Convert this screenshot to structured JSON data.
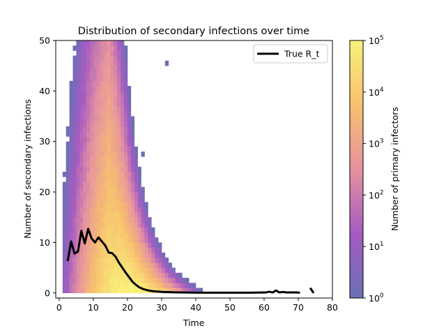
{
  "chart_data": {
    "type": "heatmap",
    "title": "Distribution of secondary infections over time",
    "xlabel": "Time",
    "ylabel": "Number of secondary infections",
    "xlim": [
      -1,
      80
    ],
    "ylim": [
      -1,
      50
    ],
    "xticks": [
      0,
      10,
      20,
      30,
      40,
      50,
      60,
      70,
      80
    ],
    "yticks": [
      0,
      10,
      20,
      30,
      40,
      50
    ],
    "grid": false,
    "legend": {
      "position": "top-right",
      "entries": [
        "True R_t"
      ]
    },
    "colorbar": {
      "label": "Number of primary infectors",
      "scale": "log",
      "range": [
        1,
        100000
      ],
      "tick_values": [
        1,
        10,
        100,
        1000,
        10000,
        100000
      ],
      "tick_labels": [
        {
          "base": "10",
          "exp": "0"
        },
        {
          "base": "10",
          "exp": "1"
        },
        {
          "base": "10",
          "exp": "2"
        },
        {
          "base": "10",
          "exp": "3"
        },
        {
          "base": "10",
          "exp": "4"
        },
        {
          "base": "10",
          "exp": "5"
        }
      ],
      "colormap": "plasma",
      "alpha": 0.6
    },
    "heatmap": {
      "x_bin_width": 1,
      "y_bin_height": 1,
      "peak_time": 20,
      "peak_count_at_zero": 100000,
      "time_span": [
        1,
        74
      ]
    },
    "series": [
      {
        "name": "True R_t",
        "color": "#000000",
        "x": [
          2,
          3,
          4,
          5,
          6,
          7,
          8,
          9,
          10,
          11,
          12,
          13,
          14,
          15,
          16,
          17,
          18,
          19,
          20,
          21,
          22,
          23,
          24,
          25,
          26,
          27,
          28,
          30,
          32,
          35,
          40,
          45,
          50,
          55,
          60,
          61,
          62,
          63,
          64,
          65,
          66,
          67,
          68,
          69,
          70
        ],
        "y": [
          6.3,
          10.2,
          7.8,
          8.2,
          12.3,
          9.8,
          12.7,
          10.8,
          10.0,
          11.0,
          10.2,
          9.4,
          8.0,
          7.9,
          7.2,
          6.0,
          5.0,
          4.0,
          3.1,
          2.2,
          1.6,
          1.1,
          0.8,
          0.6,
          0.45,
          0.35,
          0.3,
          0.2,
          0.15,
          0.1,
          0.05,
          0.05,
          0.05,
          0.05,
          0.1,
          0.25,
          0.1,
          0.5,
          0.1,
          0.2,
          0.1,
          0.1,
          0.1,
          0.1,
          0.05
        ]
      },
      {
        "name": "True R_t",
        "color": "#000000",
        "x": [
          73,
          74
        ],
        "y": [
          1.0,
          0.0
        ]
      }
    ]
  }
}
